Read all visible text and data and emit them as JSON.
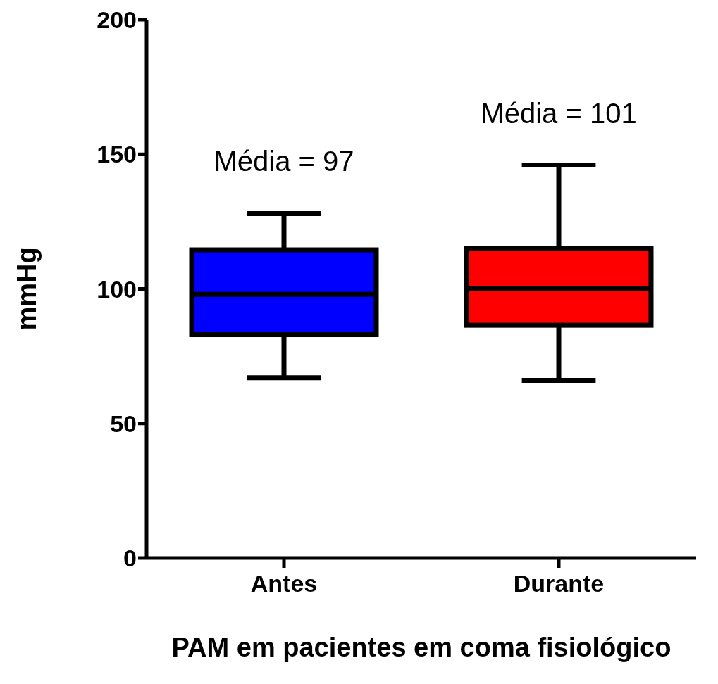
{
  "chart_data": {
    "type": "box",
    "xlabel": "PAM em pacientes em coma fisiológico",
    "ylabel": "mmHg",
    "categories": [
      "Antes",
      "Durante"
    ],
    "colors": [
      "#0000ff",
      "#ff0000"
    ],
    "boxes": [
      {
        "low": 67,
        "q1": 83,
        "median": 98,
        "q3": 114.5,
        "high": 128
      },
      {
        "low": 66,
        "q1": 86.5,
        "median": 100,
        "q3": 115,
        "high": 146
      }
    ],
    "ylim": [
      0,
      200
    ],
    "yticks": [
      0,
      50,
      100,
      150,
      200
    ],
    "annotations": [
      "Média = 97",
      "Média = 101"
    ]
  }
}
